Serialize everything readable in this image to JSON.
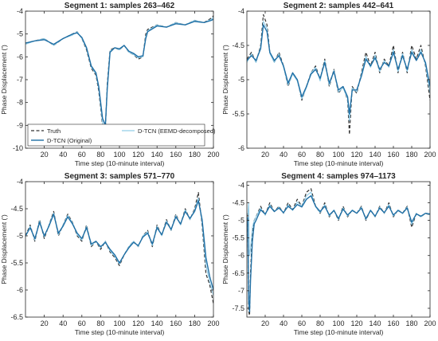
{
  "chart_data": [
    {
      "type": "line",
      "title": "Segment 1: samples 263–462",
      "xlabel": "Time step (10-minute interval)",
      "ylabel": "Phase Displacement (′)",
      "xlim": [
        0,
        200
      ],
      "ylim": [
        -10,
        -4
      ],
      "xticks": [
        "20",
        "40",
        "60",
        "80",
        "100",
        "120",
        "140",
        "160",
        "180",
        "200"
      ],
      "yticks": [
        "-10",
        "-9",
        "-8",
        "-7",
        "-6",
        "-5",
        "-4"
      ],
      "legend": {
        "placement": "bottom-left"
      },
      "x": [
        0,
        10,
        20,
        30,
        40,
        50,
        55,
        60,
        65,
        70,
        75,
        78,
        82,
        85,
        87,
        90,
        95,
        100,
        105,
        110,
        115,
        120,
        125,
        128,
        130,
        140,
        150,
        160,
        170,
        180,
        190,
        198,
        200
      ],
      "series": [
        {
          "name": "Truth",
          "color": "#333333",
          "style": "dashed",
          "values": [
            -5.4,
            -5.3,
            -5.2,
            -5.5,
            -5.2,
            -5.0,
            -4.9,
            -5.2,
            -5.7,
            -6.5,
            -6.8,
            -7.5,
            -9.0,
            -9.2,
            -7.2,
            -5.7,
            -5.6,
            -5.7,
            -5.5,
            -5.8,
            -5.9,
            -6.1,
            -6.0,
            -5.0,
            -4.8,
            -4.6,
            -4.7,
            -4.5,
            -4.6,
            -4.4,
            -4.5,
            -4.3,
            -4.2
          ]
        },
        {
          "name": "D-TCN (Original)",
          "color": "#1f6fa5",
          "style": "solid",
          "values": [
            -5.4,
            -5.3,
            -5.25,
            -5.45,
            -5.2,
            -5.0,
            -4.95,
            -5.15,
            -5.6,
            -6.4,
            -6.7,
            -7.3,
            -8.7,
            -9.0,
            -7.4,
            -5.8,
            -5.6,
            -5.65,
            -5.5,
            -5.75,
            -5.85,
            -6.0,
            -5.95,
            -5.2,
            -4.9,
            -4.65,
            -4.7,
            -4.55,
            -4.6,
            -4.45,
            -4.5,
            -4.4,
            -4.35
          ]
        },
        {
          "name": "D-TCN (EEMD-decomposed)",
          "color": "#8ecae6",
          "style": "solid",
          "values": [
            -5.45,
            -5.3,
            -5.2,
            -5.5,
            -5.2,
            -5.05,
            -4.9,
            -5.2,
            -5.65,
            -6.45,
            -6.75,
            -7.4,
            -8.9,
            -9.1,
            -7.3,
            -5.75,
            -5.6,
            -5.7,
            -5.5,
            -5.8,
            -5.9,
            -6.05,
            -6.0,
            -5.1,
            -4.85,
            -4.6,
            -4.7,
            -4.5,
            -4.6,
            -4.4,
            -4.5,
            -4.35,
            -4.25
          ]
        }
      ]
    },
    {
      "type": "line",
      "title": "Segment 2: samples 442–641",
      "xlabel": "Time step (10-minute interval)",
      "ylabel": "Phase Displacement (′)",
      "xlim": [
        0,
        200
      ],
      "ylim": [
        -6,
        -4
      ],
      "xticks": [
        "20",
        "40",
        "60",
        "80",
        "100",
        "120",
        "140",
        "160",
        "180",
        "200"
      ],
      "yticks": [
        "-6",
        "-5.5",
        "-5",
        "-4.5",
        "-4"
      ],
      "x": [
        0,
        5,
        10,
        15,
        18,
        22,
        25,
        30,
        35,
        40,
        45,
        50,
        55,
        60,
        65,
        70,
        75,
        80,
        85,
        90,
        95,
        100,
        105,
        110,
        112,
        115,
        120,
        125,
        130,
        135,
        140,
        145,
        150,
        155,
        160,
        165,
        170,
        175,
        180,
        185,
        190,
        195,
        200
      ],
      "series": [
        {
          "name": "Truth",
          "color": "#333333",
          "style": "dashed",
          "values": [
            -4.7,
            -4.6,
            -4.75,
            -4.5,
            -4.05,
            -4.2,
            -4.6,
            -4.75,
            -4.6,
            -4.8,
            -5.1,
            -4.9,
            -5.0,
            -5.3,
            -5.1,
            -4.9,
            -4.8,
            -5.0,
            -4.7,
            -5.1,
            -4.85,
            -5.2,
            -5.1,
            -5.3,
            -5.8,
            -5.1,
            -5.2,
            -4.9,
            -4.6,
            -4.8,
            -4.6,
            -4.9,
            -4.7,
            -4.8,
            -4.5,
            -4.9,
            -4.6,
            -4.9,
            -4.5,
            -4.7,
            -4.5,
            -4.8,
            -5.3
          ]
        },
        {
          "name": "D-TCN (Original)",
          "color": "#1f6fa5",
          "style": "solid",
          "values": [
            -4.72,
            -4.65,
            -4.72,
            -4.55,
            -4.2,
            -4.3,
            -4.6,
            -4.72,
            -4.65,
            -4.8,
            -5.05,
            -4.9,
            -5.0,
            -5.25,
            -5.1,
            -4.92,
            -4.85,
            -4.98,
            -4.75,
            -5.05,
            -4.88,
            -5.15,
            -5.1,
            -5.25,
            -5.5,
            -5.15,
            -5.15,
            -4.95,
            -4.7,
            -4.8,
            -4.68,
            -4.85,
            -4.75,
            -4.8,
            -4.6,
            -4.85,
            -4.65,
            -4.85,
            -4.6,
            -4.72,
            -4.6,
            -4.75,
            -5.1
          ]
        },
        {
          "name": "D-TCN (EEMD-decomposed)",
          "color": "#8ecae6",
          "style": "solid",
          "values": [
            -4.75,
            -4.62,
            -4.75,
            -4.52,
            -4.15,
            -4.25,
            -4.62,
            -4.75,
            -4.62,
            -4.82,
            -5.08,
            -4.92,
            -5.02,
            -5.28,
            -5.12,
            -4.9,
            -4.82,
            -5.02,
            -4.72,
            -5.08,
            -4.86,
            -5.18,
            -5.12,
            -5.28,
            -5.6,
            -5.12,
            -5.18,
            -4.92,
            -4.66,
            -4.82,
            -4.64,
            -4.88,
            -4.72,
            -4.82,
            -4.56,
            -4.88,
            -4.62,
            -4.88,
            -4.56,
            -4.72,
            -4.56,
            -4.78,
            -5.2
          ]
        }
      ]
    },
    {
      "type": "line",
      "title": "Segment 3: samples 571–770",
      "xlabel": "Time step (10-minute interval)",
      "ylabel": "Phase Displacement (′)",
      "xlim": [
        0,
        200
      ],
      "ylim": [
        -6.5,
        -4
      ],
      "xticks": [
        "20",
        "40",
        "60",
        "80",
        "100",
        "120",
        "140",
        "160",
        "180",
        "200"
      ],
      "yticks": [
        "-6.5",
        "-6",
        "-5.5",
        "-5",
        "-4.5",
        "-4"
      ],
      "x": [
        0,
        5,
        10,
        15,
        20,
        25,
        30,
        35,
        40,
        45,
        50,
        55,
        60,
        65,
        70,
        75,
        80,
        85,
        90,
        95,
        100,
        105,
        110,
        115,
        120,
        125,
        130,
        135,
        140,
        145,
        150,
        155,
        160,
        165,
        170,
        175,
        180,
        184,
        188,
        192,
        196,
        200
      ],
      "series": [
        {
          "name": "Truth",
          "color": "#333333",
          "style": "dashed",
          "values": [
            -5.0,
            -4.8,
            -5.1,
            -4.7,
            -5.05,
            -4.8,
            -4.55,
            -5.0,
            -4.8,
            -4.6,
            -4.75,
            -5.0,
            -5.1,
            -4.8,
            -5.2,
            -5.1,
            -5.25,
            -5.1,
            -5.3,
            -5.4,
            -5.55,
            -5.35,
            -5.2,
            -5.1,
            -5.2,
            -5.0,
            -4.9,
            -5.2,
            -4.8,
            -5.0,
            -4.7,
            -4.9,
            -4.6,
            -4.8,
            -4.5,
            -4.7,
            -4.5,
            -4.2,
            -4.8,
            -5.7,
            -5.9,
            -6.25
          ]
        },
        {
          "name": "D-TCN (Original)",
          "color": "#1f6fa5",
          "style": "solid",
          "values": [
            -5.0,
            -4.85,
            -5.05,
            -4.75,
            -5.0,
            -4.82,
            -4.6,
            -4.95,
            -4.82,
            -4.65,
            -4.78,
            -4.95,
            -5.05,
            -4.85,
            -5.15,
            -5.1,
            -5.2,
            -5.12,
            -5.25,
            -5.35,
            -5.5,
            -5.35,
            -5.22,
            -5.12,
            -5.18,
            -5.02,
            -4.95,
            -5.15,
            -4.85,
            -4.98,
            -4.75,
            -4.88,
            -4.65,
            -4.78,
            -4.55,
            -4.68,
            -4.55,
            -4.35,
            -4.7,
            -5.4,
            -5.75,
            -6.0
          ]
        },
        {
          "name": "D-TCN (EEMD-decomposed)",
          "color": "#8ecae6",
          "style": "solid",
          "values": [
            -5.02,
            -4.82,
            -5.08,
            -4.72,
            -5.02,
            -4.8,
            -4.58,
            -4.98,
            -4.8,
            -4.62,
            -4.76,
            -4.98,
            -5.08,
            -4.82,
            -5.18,
            -5.1,
            -5.22,
            -5.1,
            -5.28,
            -5.38,
            -5.52,
            -5.35,
            -5.2,
            -5.1,
            -5.2,
            -5.0,
            -4.92,
            -5.18,
            -4.82,
            -5.0,
            -4.72,
            -4.9,
            -4.62,
            -4.8,
            -4.52,
            -4.7,
            -4.52,
            -4.3,
            -4.75,
            -5.55,
            -5.85,
            -6.1
          ]
        }
      ]
    },
    {
      "type": "line",
      "title": "Segment 4: samples 974–1173",
      "xlabel": "Time step (10-minute interval)",
      "ylabel": "Phase Displacement (′)",
      "xlim": [
        0,
        200
      ],
      "ylim": [
        -7.75,
        -3.9
      ],
      "xticks": [
        "20",
        "40",
        "60",
        "80",
        "100",
        "120",
        "140",
        "160",
        "180",
        "200"
      ],
      "yticks": [
        "-7.5",
        "-7",
        "-6.5",
        "-6",
        "-5.5",
        "-5",
        "-4.5",
        "-4"
      ],
      "x": [
        1,
        2,
        3,
        4,
        6,
        8,
        10,
        15,
        20,
        25,
        30,
        35,
        40,
        45,
        50,
        55,
        60,
        65,
        70,
        75,
        80,
        85,
        90,
        95,
        100,
        105,
        110,
        115,
        120,
        125,
        130,
        135,
        140,
        145,
        150,
        155,
        160,
        165,
        170,
        175,
        180,
        185,
        190,
        195,
        200
      ],
      "series": [
        {
          "name": "Truth",
          "color": "#333333",
          "style": "dashed",
          "values": [
            -4.8,
            -7.6,
            -7.7,
            -6.5,
            -5.3,
            -5.0,
            -4.9,
            -4.6,
            -4.85,
            -4.5,
            -4.75,
            -4.6,
            -4.8,
            -4.5,
            -4.7,
            -4.4,
            -4.6,
            -4.2,
            -4.1,
            -4.6,
            -4.8,
            -4.5,
            -4.9,
            -4.7,
            -5.0,
            -4.6,
            -4.9,
            -4.7,
            -4.8,
            -4.6,
            -5.0,
            -4.7,
            -4.9,
            -4.6,
            -4.8,
            -4.5,
            -4.9,
            -4.7,
            -4.8,
            -4.6,
            -5.2,
            -4.8,
            -4.9,
            -4.8,
            -4.85
          ]
        },
        {
          "name": "D-TCN (Original)",
          "color": "#1f6fa5",
          "style": "solid",
          "values": [
            -4.9,
            -7.3,
            -7.6,
            -6.7,
            -5.6,
            -5.1,
            -5.0,
            -4.7,
            -4.82,
            -4.6,
            -4.75,
            -4.65,
            -4.78,
            -4.6,
            -4.7,
            -4.55,
            -4.62,
            -4.4,
            -4.3,
            -4.6,
            -4.75,
            -4.6,
            -4.85,
            -4.72,
            -4.95,
            -4.68,
            -4.85,
            -4.72,
            -4.8,
            -4.65,
            -4.95,
            -4.72,
            -4.88,
            -4.65,
            -4.78,
            -4.6,
            -4.85,
            -4.72,
            -4.8,
            -4.65,
            -5.05,
            -4.82,
            -4.88,
            -4.8,
            -4.82
          ]
        },
        {
          "name": "D-TCN (EEMD-decomposed)",
          "color": "#8ecae6",
          "style": "solid",
          "values": [
            -4.85,
            -4.5,
            -6.0,
            -5.8,
            -5.2,
            -5.0,
            -4.9,
            -4.65,
            -4.85,
            -4.55,
            -4.75,
            -4.62,
            -4.8,
            -4.55,
            -4.72,
            -4.48,
            -4.6,
            -4.3,
            -4.2,
            -4.62,
            -4.78,
            -4.55,
            -4.88,
            -4.7,
            -4.98,
            -4.64,
            -4.88,
            -4.7,
            -4.8,
            -4.62,
            -4.98,
            -4.7,
            -4.9,
            -4.62,
            -4.8,
            -4.55,
            -4.88,
            -4.7,
            -4.8,
            -4.62,
            -5.12,
            -4.8,
            -4.9,
            -4.8,
            -4.84
          ]
        }
      ]
    }
  ]
}
